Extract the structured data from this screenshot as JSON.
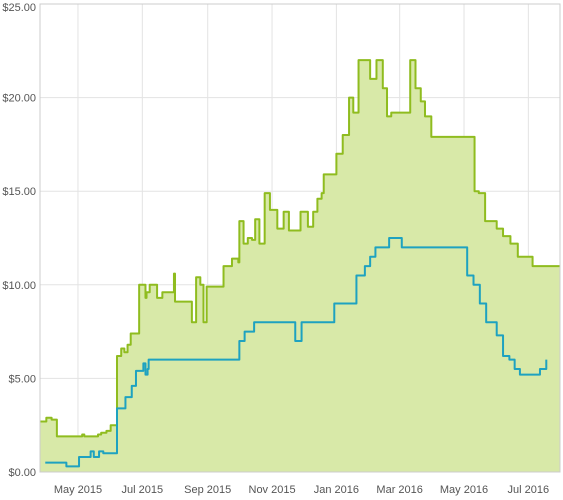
{
  "chart_data": {
    "type": "area",
    "x_axis": {
      "type": "date",
      "range": [
        "2015-03-26",
        "2016-07-31"
      ],
      "tick_labels": [
        {
          "date": "2015-05-01",
          "label": "May 2015"
        },
        {
          "date": "2015-07-01",
          "label": "Jul 2015"
        },
        {
          "date": "2015-09-01",
          "label": "Sep 2015"
        },
        {
          "date": "2015-11-01",
          "label": "Nov 2015"
        },
        {
          "date": "2016-01-01",
          "label": "Jan 2016"
        },
        {
          "date": "2016-03-01",
          "label": "Mar 2016"
        },
        {
          "date": "2016-05-01",
          "label": "May 2016"
        },
        {
          "date": "2016-07-01",
          "label": "Jul 2016"
        }
      ]
    },
    "y_axis": {
      "range": [
        0,
        25
      ],
      "ticks": [
        0,
        5,
        10,
        15,
        20,
        25
      ],
      "tick_labels": [
        "$0.00",
        "$5.00",
        "$10.00",
        "$15.00",
        "$20.00",
        "$25.00"
      ]
    },
    "grid": true,
    "legend": "none",
    "series": [
      {
        "color": "#8fbc1f",
        "fill": "#d8e9a8",
        "step": true,
        "points": [
          [
            "2015-03-26",
            2.7
          ],
          [
            "2015-03-31",
            2.7
          ],
          [
            "2015-04-01",
            2.9
          ],
          [
            "2015-04-06",
            2.8
          ],
          [
            "2015-04-10",
            2.8
          ],
          [
            "2015-04-11",
            1.9
          ],
          [
            "2015-05-04",
            1.9
          ],
          [
            "2015-05-05",
            2.0
          ],
          [
            "2015-05-07",
            1.9
          ],
          [
            "2015-05-19",
            1.9
          ],
          [
            "2015-05-20",
            2.0
          ],
          [
            "2015-05-23",
            2.1
          ],
          [
            "2015-05-28",
            2.2
          ],
          [
            "2015-06-01",
            2.5
          ],
          [
            "2015-06-06",
            2.5
          ],
          [
            "2015-06-07",
            6.2
          ],
          [
            "2015-06-10",
            6.2
          ],
          [
            "2015-06-11",
            6.6
          ],
          [
            "2015-06-14",
            6.4
          ],
          [
            "2015-06-17",
            6.8
          ],
          [
            "2015-06-20",
            7.4
          ],
          [
            "2015-06-28",
            10.0
          ],
          [
            "2015-07-03",
            10.0
          ],
          [
            "2015-07-04",
            9.3
          ],
          [
            "2015-07-05",
            9.6
          ],
          [
            "2015-07-08",
            10.0
          ],
          [
            "2015-07-15",
            9.3
          ],
          [
            "2015-07-20",
            9.6
          ],
          [
            "2015-07-31",
            10.6
          ],
          [
            "2015-08-01",
            9.1
          ],
          [
            "2015-08-16",
            9.1
          ],
          [
            "2015-08-17",
            8.0
          ],
          [
            "2015-08-21",
            10.4
          ],
          [
            "2015-08-25",
            10.0
          ],
          [
            "2015-08-28",
            8.0
          ],
          [
            "2015-08-30",
            8.0
          ],
          [
            "2015-08-31",
            9.9
          ],
          [
            "2015-09-13",
            9.9
          ],
          [
            "2015-09-16",
            11.0
          ],
          [
            "2015-09-20",
            11.0
          ],
          [
            "2015-09-24",
            11.4
          ],
          [
            "2015-09-30",
            11.2
          ],
          [
            "2015-10-01",
            13.4
          ],
          [
            "2015-10-05",
            12.2
          ],
          [
            "2015-10-09",
            12.5
          ],
          [
            "2015-10-13",
            12.4
          ],
          [
            "2015-10-16",
            13.5
          ],
          [
            "2015-10-20",
            12.2
          ],
          [
            "2015-10-25",
            14.9
          ],
          [
            "2015-10-30",
            14.0
          ],
          [
            "2015-11-06",
            13.0
          ],
          [
            "2015-11-12",
            13.9
          ],
          [
            "2015-11-17",
            12.9
          ],
          [
            "2015-11-22",
            12.9
          ],
          [
            "2015-11-28",
            13.9
          ],
          [
            "2015-12-04",
            13.9
          ],
          [
            "2015-12-05",
            13.1
          ],
          [
            "2015-12-10",
            13.9
          ],
          [
            "2015-12-14",
            14.6
          ],
          [
            "2015-12-18",
            14.9
          ],
          [
            "2015-12-20",
            15.9
          ],
          [
            "2016-01-01",
            17.0
          ],
          [
            "2016-01-07",
            18.0
          ],
          [
            "2016-01-10",
            18.0
          ],
          [
            "2016-01-13",
            20.0
          ],
          [
            "2016-01-17",
            19.2
          ],
          [
            "2016-01-22",
            22.0
          ],
          [
            "2016-02-01",
            22.0
          ],
          [
            "2016-02-02",
            21.0
          ],
          [
            "2016-02-08",
            22.0
          ],
          [
            "2016-02-14",
            20.5
          ],
          [
            "2016-02-18",
            19.0
          ],
          [
            "2016-02-22",
            19.2
          ],
          [
            "2016-03-11",
            22.0
          ],
          [
            "2016-03-16",
            20.5
          ],
          [
            "2016-03-21",
            19.8
          ],
          [
            "2016-03-25",
            19.0
          ],
          [
            "2016-03-31",
            17.9
          ],
          [
            "2016-04-25",
            17.9
          ],
          [
            "2016-05-09",
            17.9
          ],
          [
            "2016-05-11",
            15.0
          ],
          [
            "2016-05-15",
            14.9
          ],
          [
            "2016-05-21",
            13.4
          ],
          [
            "2016-06-01",
            13.0
          ],
          [
            "2016-06-07",
            12.6
          ],
          [
            "2016-06-14",
            12.2
          ],
          [
            "2016-06-21",
            11.5
          ],
          [
            "2016-07-04",
            11.5
          ],
          [
            "2016-07-05",
            11.0
          ],
          [
            "2016-07-31",
            11.0
          ]
        ]
      },
      {
        "color": "#1ea2c0",
        "step": true,
        "points": [
          [
            "2015-03-31",
            0.5
          ],
          [
            "2015-04-17",
            0.5
          ],
          [
            "2015-04-20",
            0.3
          ],
          [
            "2015-04-30",
            0.3
          ],
          [
            "2015-05-02",
            0.8
          ],
          [
            "2015-05-12",
            0.8
          ],
          [
            "2015-05-13",
            1.1
          ],
          [
            "2015-05-16",
            0.8
          ],
          [
            "2015-05-21",
            1.1
          ],
          [
            "2015-05-25",
            1.0
          ],
          [
            "2015-06-01",
            1.0
          ],
          [
            "2015-06-07",
            3.4
          ],
          [
            "2015-06-13",
            3.4
          ],
          [
            "2015-06-15",
            4.0
          ],
          [
            "2015-06-21",
            4.6
          ],
          [
            "2015-06-25",
            5.4
          ],
          [
            "2015-07-02",
            5.8
          ],
          [
            "2015-07-04",
            5.2
          ],
          [
            "2015-07-06",
            5.5
          ],
          [
            "2015-07-07",
            6.0
          ],
          [
            "2015-07-31",
            6.0
          ],
          [
            "2015-10-01",
            7.0
          ],
          [
            "2015-10-05",
            7.0
          ],
          [
            "2015-10-06",
            7.5
          ],
          [
            "2015-10-14",
            7.5
          ],
          [
            "2015-10-15",
            8.0
          ],
          [
            "2015-11-22",
            8.0
          ],
          [
            "2015-11-23",
            7.0
          ],
          [
            "2015-11-28",
            7.0
          ],
          [
            "2015-11-29",
            8.0
          ],
          [
            "2015-12-29",
            8.0
          ],
          [
            "2015-12-30",
            9.0
          ],
          [
            "2016-01-20",
            10.5
          ],
          [
            "2016-01-28",
            11.0
          ],
          [
            "2016-02-02",
            11.5
          ],
          [
            "2016-02-07",
            12.0
          ],
          [
            "2016-02-19",
            12.0
          ],
          [
            "2016-02-20",
            12.5
          ],
          [
            "2016-03-01",
            12.5
          ],
          [
            "2016-03-03",
            12.0
          ],
          [
            "2016-04-28",
            12.0
          ],
          [
            "2016-05-04",
            10.5
          ],
          [
            "2016-05-10",
            10.0
          ],
          [
            "2016-05-16",
            9.0
          ],
          [
            "2016-05-22",
            8.0
          ],
          [
            "2016-06-01",
            7.3
          ],
          [
            "2016-06-07",
            6.2
          ],
          [
            "2016-06-13",
            6.0
          ],
          [
            "2016-06-18",
            5.5
          ],
          [
            "2016-06-23",
            5.2
          ],
          [
            "2016-07-07",
            5.2
          ],
          [
            "2016-07-12",
            5.5
          ],
          [
            "2016-07-18",
            6.0
          ]
        ]
      }
    ]
  }
}
